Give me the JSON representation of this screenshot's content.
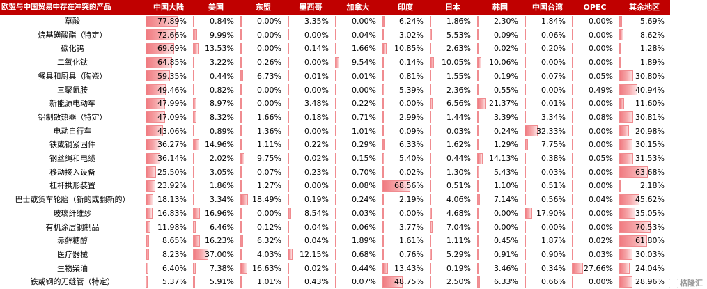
{
  "chart_data": {
    "type": "table",
    "title": "",
    "row_header": "欧盟与中国贸易中存在冲突的产品",
    "columns": [
      "中国大陆",
      "美国",
      "东盟",
      "墨西哥",
      "加拿大",
      "印度",
      "日本",
      "韩国",
      "中国台湾",
      "OPEC",
      "其余地区"
    ],
    "rows": [
      {
        "label": "草酸",
        "values": [
          "77.89%",
          "0.84%",
          "0.00%",
          "3.35%",
          "0.00%",
          "6.24%",
          "1.86%",
          "2.30%",
          "1.84%",
          "0.00%",
          "5.69%"
        ]
      },
      {
        "label": "烷基磺酸酯（特定）",
        "values": [
          "72.66%",
          "9.99%",
          "0.00%",
          "0.00%",
          "0.04%",
          "3.02%",
          "5.53%",
          "0.09%",
          "0.06%",
          "0.00%",
          "8.62%"
        ]
      },
      {
        "label": "碳化钨",
        "values": [
          "69.69%",
          "13.53%",
          "0.00%",
          "0.14%",
          "1.66%",
          "10.85%",
          "2.63%",
          "0.02%",
          "0.20%",
          "0.00%",
          "1.28%"
        ]
      },
      {
        "label": "二氧化钛",
        "values": [
          "64.85%",
          "3.22%",
          "0.26%",
          "0.00%",
          "9.54%",
          "0.14%",
          "10.05%",
          "10.06%",
          "0.00%",
          "0.00%",
          "1.89%"
        ]
      },
      {
        "label": "餐具和厨具（陶瓷）",
        "values": [
          "59.35%",
          "0.44%",
          "6.73%",
          "0.01%",
          "0.01%",
          "0.81%",
          "1.55%",
          "0.19%",
          "0.07%",
          "0.05%",
          "30.80%"
        ]
      },
      {
        "label": "三聚氰胺",
        "values": [
          "49.46%",
          "0.82%",
          "0.00%",
          "0.00%",
          "0.00%",
          "5.39%",
          "2.36%",
          "0.55%",
          "0.00%",
          "0.49%",
          "40.94%"
        ]
      },
      {
        "label": "新能源电动车",
        "values": [
          "47.99%",
          "8.97%",
          "0.00%",
          "3.48%",
          "0.22%",
          "0.00%",
          "6.56%",
          "21.37%",
          "0.01%",
          "0.00%",
          "11.60%"
        ]
      },
      {
        "label": "铝制散热器（特定）",
        "values": [
          "47.09%",
          "8.32%",
          "1.66%",
          "0.18%",
          "0.71%",
          "2.99%",
          "1.44%",
          "3.39%",
          "3.34%",
          "0.08%",
          "30.81%"
        ]
      },
      {
        "label": "电动自行车",
        "values": [
          "43.06%",
          "0.89%",
          "1.36%",
          "0.00%",
          "1.01%",
          "0.09%",
          "0.03%",
          "0.24%",
          "32.33%",
          "0.00%",
          "20.98%"
        ]
      },
      {
        "label": "铁或钢紧固件",
        "values": [
          "36.27%",
          "14.96%",
          "1.11%",
          "0.22%",
          "0.29%",
          "6.33%",
          "1.62%",
          "1.29%",
          "7.75%",
          "0.00%",
          "30.15%"
        ]
      },
      {
        "label": "钢丝绳和电缆",
        "values": [
          "36.14%",
          "2.02%",
          "9.75%",
          "0.02%",
          "0.15%",
          "5.40%",
          "0.44%",
          "14.13%",
          "0.38%",
          "0.05%",
          "31.53%"
        ]
      },
      {
        "label": "移动接入设备",
        "values": [
          "25.50%",
          "3.05%",
          "0.07%",
          "0.23%",
          "0.70%",
          "0.02%",
          "1.30%",
          "5.43%",
          "0.03%",
          "0.00%",
          "63.68%"
        ]
      },
      {
        "label": "杠杆拱形装置",
        "values": [
          "23.92%",
          "1.86%",
          "1.27%",
          "0.00%",
          "0.08%",
          "68.56%",
          "0.51%",
          "1.10%",
          "0.51%",
          "0.00%",
          "2.18%"
        ]
      },
      {
        "label": "巴士或货车轮胎（新的或翻新的）",
        "values": [
          "18.13%",
          "3.34%",
          "18.49%",
          "0.19%",
          "0.24%",
          "2.19%",
          "4.06%",
          "7.14%",
          "0.56%",
          "0.04%",
          "45.62%"
        ]
      },
      {
        "label": "玻璃纤维纱",
        "values": [
          "16.83%",
          "16.96%",
          "0.00%",
          "8.54%",
          "0.03%",
          "0.00%",
          "4.68%",
          "0.00%",
          "17.90%",
          "0.00%",
          "35.05%"
        ]
      },
      {
        "label": "有机涂层钢制品",
        "values": [
          "11.98%",
          "6.46%",
          "0.12%",
          "0.04%",
          "0.06%",
          "3.77%",
          "7.04%",
          "0.00%",
          "0.00%",
          "0.00%",
          "70.53%"
        ]
      },
      {
        "label": "赤藓糖醇",
        "values": [
          "8.65%",
          "16.23%",
          "6.32%",
          "0.04%",
          "1.89%",
          "1.61%",
          "1.11%",
          "0.45%",
          "1.87%",
          "0.02%",
          "61.80%"
        ]
      },
      {
        "label": "医疗器械",
        "values": [
          "8.23%",
          "37.00%",
          "4.03%",
          "12.15%",
          "0.68%",
          "0.76%",
          "5.29%",
          "0.91%",
          "0.90%",
          "0.03%",
          "30.03%"
        ]
      },
      {
        "label": "生物柴油",
        "values": [
          "6.40%",
          "7.38%",
          "16.63%",
          "0.02%",
          "0.44%",
          "13.43%",
          "0.19%",
          "3.46%",
          "0.34%",
          "27.66%",
          "24.04%"
        ]
      },
      {
        "label": "铁或钢的无缝管（特定）",
        "values": [
          "5.37%",
          "5.91%",
          "1.01%",
          "0.43%",
          "0.07%",
          "48.75%",
          "2.50%",
          "6.33%",
          "0.66%",
          "0.00%",
          "28.96%"
        ]
      }
    ]
  },
  "watermark": {
    "text": "格隆汇",
    "icon": "gelonghui-logo-icon"
  },
  "colors": {
    "header_bg": "#c00000",
    "header_text": "#ffffff",
    "bar": "#f07a80",
    "bar_light": "#fde4e5"
  }
}
